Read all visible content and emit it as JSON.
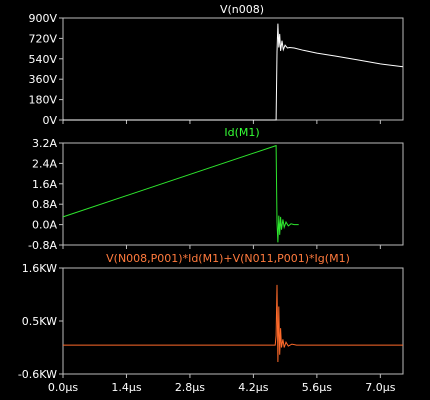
{
  "chart_data": [
    {
      "type": "line",
      "title": "V(n008)",
      "title_color": "#ffffff",
      "series_color": "#ffffff",
      "ylim": [
        0,
        900
      ],
      "y_ticks": [
        {
          "value": 0,
          "label": "0V"
        },
        {
          "value": 180,
          "label": "180V"
        },
        {
          "value": 360,
          "label": "360V"
        },
        {
          "value": 540,
          "label": "540V"
        },
        {
          "value": 720,
          "label": "720V"
        },
        {
          "value": 900,
          "label": "900V"
        }
      ],
      "x": [
        0,
        4.7,
        4.72,
        4.74,
        4.76,
        4.78,
        4.8,
        4.83,
        4.86,
        4.9,
        4.95,
        5.0,
        5.1,
        5.3,
        5.6,
        6.0,
        6.5,
        7.0,
        7.5
      ],
      "y": [
        0,
        0,
        600,
        850,
        640,
        760,
        610,
        700,
        620,
        660,
        635,
        640,
        635,
        615,
        590,
        565,
        530,
        495,
        470
      ]
    },
    {
      "type": "line",
      "title": "Id(M1)",
      "title_color": "#35ff35",
      "series_color": "#2ee62e",
      "ylim": [
        -0.8,
        3.2
      ],
      "y_ticks": [
        {
          "value": -0.8,
          "label": "-0.8A"
        },
        {
          "value": 0.0,
          "label": "0.0A"
        },
        {
          "value": 0.8,
          "label": "0.8A"
        },
        {
          "value": 1.6,
          "label": "1.6A"
        },
        {
          "value": 2.4,
          "label": "2.4A"
        },
        {
          "value": 3.2,
          "label": "3.2A"
        }
      ],
      "x": [
        0,
        4.7,
        4.72,
        4.74,
        4.76,
        4.78,
        4.8,
        4.82,
        4.85,
        4.88,
        4.92,
        4.97,
        5.03,
        5.1,
        5.2
      ],
      "y": [
        0.3,
        3.1,
        0.1,
        -0.7,
        0.35,
        -0.4,
        0.3,
        -0.2,
        0.2,
        -0.1,
        0.1,
        -0.05,
        0.03,
        0.0,
        0.0
      ]
    },
    {
      "type": "line",
      "title": "V(N008,P001)*Id(M1)+V(N011,P001)*Ig(M1)",
      "title_color": "#ff7a3d",
      "series_color": "#ff6a2a",
      "ylim": [
        -0.6,
        1.6
      ],
      "y_ticks": [
        {
          "value": -0.6,
          "label": "-0.6KW"
        },
        {
          "value": 0.5,
          "label": "0.5KW"
        },
        {
          "value": 1.6,
          "label": "1.6KW"
        }
      ],
      "x": [
        0,
        4.68,
        4.7,
        4.72,
        4.74,
        4.76,
        4.78,
        4.8,
        4.82,
        4.85,
        4.88,
        4.92,
        4.97,
        5.05,
        5.15,
        7.5
      ],
      "y": [
        0,
        0,
        0.2,
        1.25,
        -0.35,
        0.8,
        -0.2,
        0.35,
        -0.05,
        0.12,
        -0.05,
        0.06,
        -0.02,
        0.02,
        0,
        0
      ]
    }
  ],
  "x_axis": {
    "xlim": [
      0,
      7.5
    ],
    "ticks": [
      {
        "value": 0.0,
        "label": "0.0µs"
      },
      {
        "value": 1.4,
        "label": "1.4µs"
      },
      {
        "value": 2.8,
        "label": "2.8µs"
      },
      {
        "value": 4.2,
        "label": "4.2µs"
      },
      {
        "value": 5.6,
        "label": "5.6µs"
      },
      {
        "value": 7.0,
        "label": "7.0µs"
      }
    ]
  }
}
